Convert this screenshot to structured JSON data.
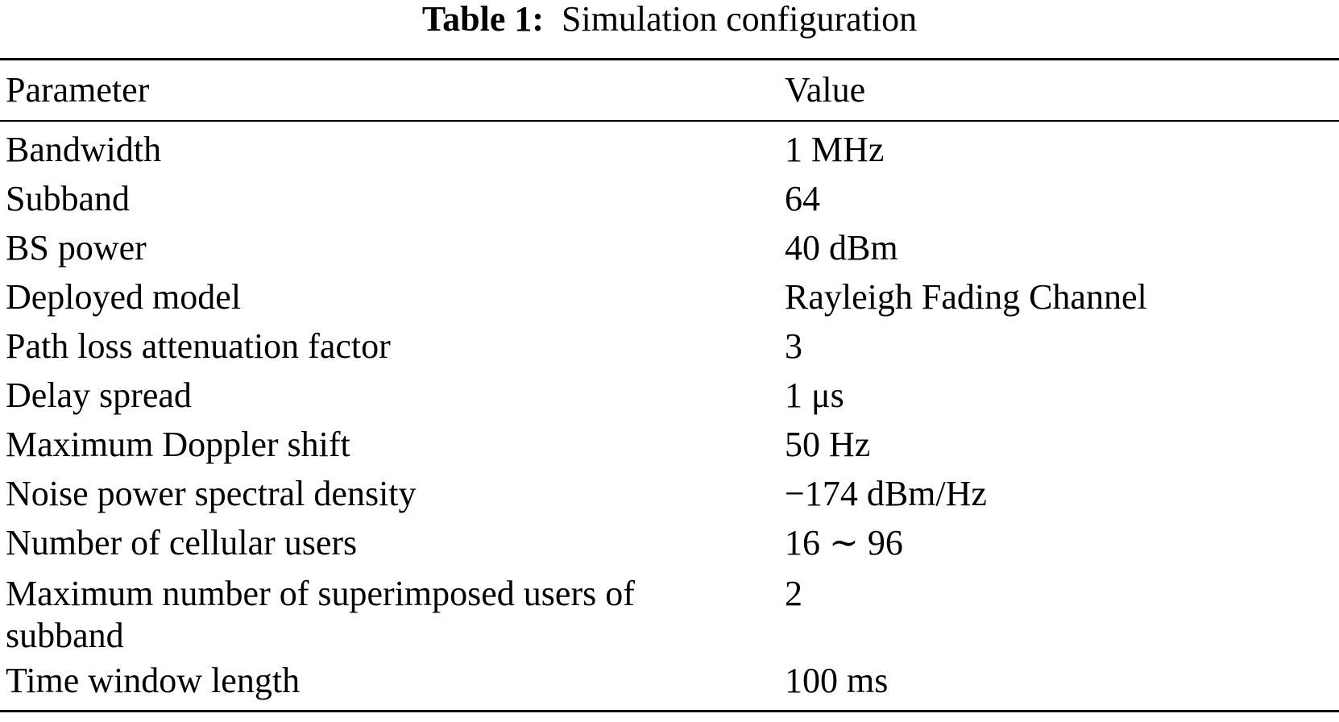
{
  "caption": {
    "label": "Table 1:",
    "text": "Simulation configuration"
  },
  "table": {
    "headers": [
      "Parameter",
      "Value"
    ],
    "rows": [
      [
        "Bandwidth",
        "1 MHz"
      ],
      [
        "Subband",
        "64"
      ],
      [
        "BS power",
        "40 dBm"
      ],
      [
        "Deployed model",
        "Rayleigh Fading Channel"
      ],
      [
        "Path loss attenuation factor",
        "3"
      ],
      [
        "Delay spread",
        "1 μs"
      ],
      [
        "Maximum Doppler shift",
        "50 Hz"
      ],
      [
        "Noise power spectral density",
        "−174 dBm/Hz"
      ],
      [
        "Number of cellular users",
        "16 ∼ 96"
      ],
      [
        "Maximum number of superimposed users of subband",
        "2"
      ],
      [
        "Time window length",
        "100 ms"
      ]
    ]
  }
}
